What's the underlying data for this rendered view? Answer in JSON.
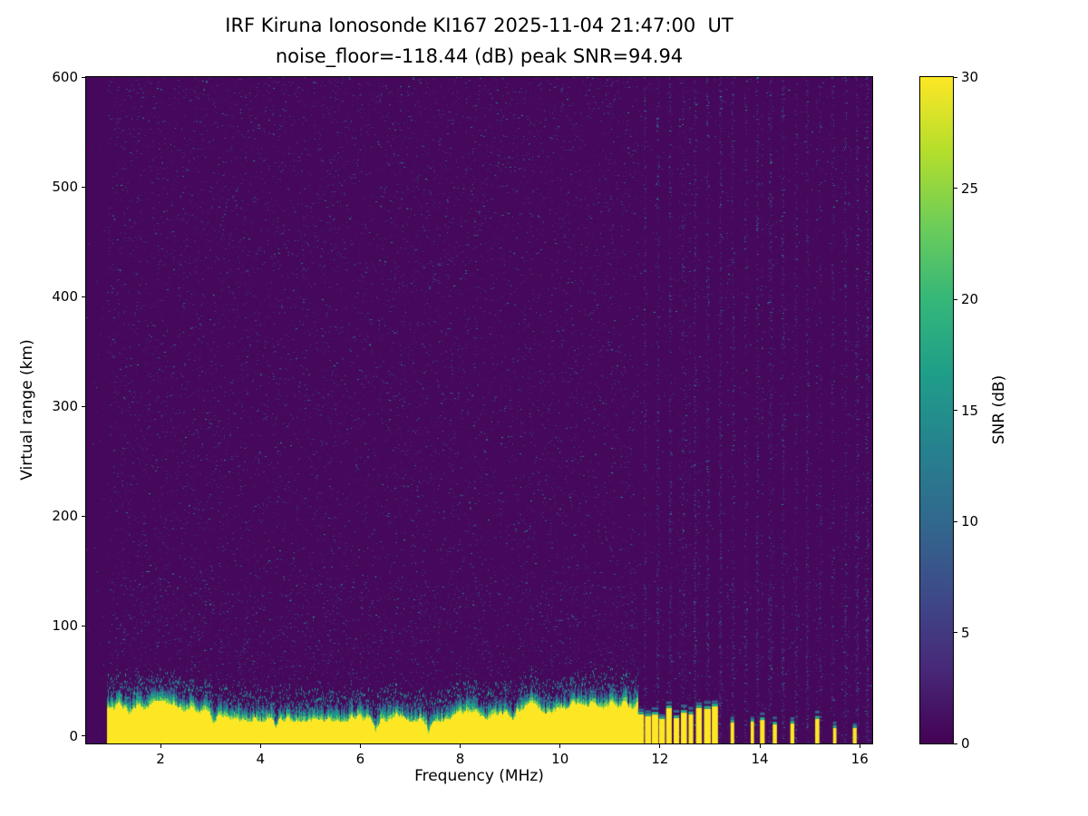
{
  "chart_data": {
    "type": "heatmap",
    "title": "IRF Kiruna Ionosonde KI167 2025-11-04 21:47:00  UT",
    "subtitle": "noise_floor=-118.44 (dB) peak SNR=94.94",
    "station": "IRF Kiruna Ionosonde KI167",
    "timestamp_ut": "2025-11-04 21:47:00",
    "noise_floor_db": -118.44,
    "peak_snr_db": 94.94,
    "xlabel": "Frequency (MHz)",
    "ylabel": "Virtual range (km)",
    "xlim": [
      0.51,
      16.25
    ],
    "ylim": [
      -7,
      600
    ],
    "xticks": [
      2,
      4,
      6,
      8,
      10,
      12,
      14,
      16
    ],
    "yticks": [
      0,
      100,
      200,
      300,
      400,
      500,
      600
    ],
    "grid": false,
    "colormap": "viridis",
    "colorbar": {
      "label": "SNR (dB)",
      "min": 0,
      "max": 30,
      "ticks": [
        0,
        5,
        10,
        15,
        20,
        25,
        30
      ]
    },
    "features": {
      "background_snr_db": [
        0,
        2
      ],
      "speckle_noise_snr_db": [
        2,
        12
      ],
      "ground_clutter_band": {
        "freq_mhz": [
          0.93,
          11.55
        ],
        "range_km": [
          -7,
          28
        ],
        "snr_db": 30
      },
      "band_dips_mhz": [
        3.05,
        4.3,
        6.3,
        7.35,
        9.05
      ],
      "pulsed_clutter_freqs_mhz": [
        11.62,
        11.76,
        11.9,
        12.04,
        12.18,
        12.33,
        12.48,
        12.62,
        12.78,
        12.95,
        13.1,
        13.45,
        13.85,
        14.05,
        14.3,
        14.65,
        15.15,
        15.5,
        15.9
      ],
      "rfi_stripe_freqs_mhz": [
        11.7,
        11.95,
        12.2,
        12.45,
        12.7,
        12.95,
        13.2,
        13.45,
        13.7,
        13.95,
        14.2,
        14.45,
        14.7,
        14.95,
        15.2,
        15.45,
        15.7,
        15.95,
        16.15
      ]
    }
  }
}
